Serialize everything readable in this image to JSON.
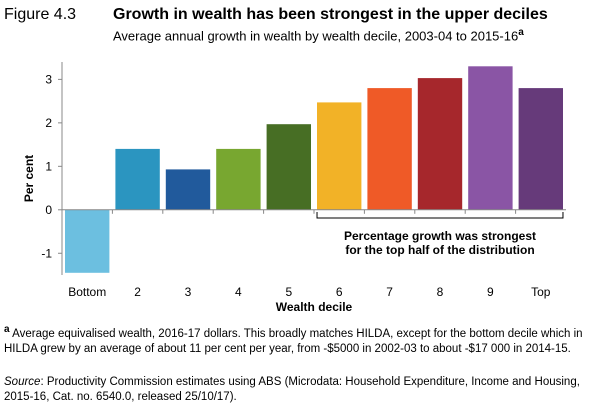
{
  "header": {
    "figure_label": "Figure 4.3",
    "title": "Growth in wealth has been strongest in the upper deciles",
    "subtitle": "Average annual growth in wealth by wealth decile, 2003-04 to 2015-16",
    "subtitle_marker": "a"
  },
  "chart_data": {
    "type": "bar",
    "categories": [
      "Bottom",
      "2",
      "3",
      "4",
      "5",
      "6",
      "7",
      "8",
      "9",
      "Top"
    ],
    "values": [
      -1.45,
      1.4,
      0.93,
      1.4,
      1.97,
      2.47,
      2.8,
      3.03,
      3.3,
      2.8
    ],
    "colors": [
      "#6cbfe0",
      "#2b95c0",
      "#215a9c",
      "#78a730",
      "#476e24",
      "#f2b227",
      "#ef5a27",
      "#a6272c",
      "#8a55a5",
      "#663a7a"
    ],
    "xlabel": "Wealth decile",
    "ylabel": "Per cent",
    "ylim": [
      -1.5,
      3.4
    ],
    "yticks": [
      -1,
      0,
      1,
      2,
      3
    ],
    "annotation": {
      "line1": "Percentage growth was strongest",
      "line2": "for the top half of the distribution",
      "from_category": "6",
      "to_category": "Top"
    },
    "grid": false
  },
  "notes": {
    "footnote_marker": "a",
    "footnote": "Average equivalised wealth, 2016-17 dollars. This broadly matches HILDA, except for the bottom decile which in HILDA grew by an average of about 11 per cent per year, from -$5000 in 2002-03 to about -$17 000 in 2014-15.",
    "source_label": "Source",
    "source_text": ": Productivity Commission estimates using ABS (Microdata: Household Expenditure, Income and Housing, 2015-16, Cat. no. 6540.0, released 25/10/17)."
  }
}
